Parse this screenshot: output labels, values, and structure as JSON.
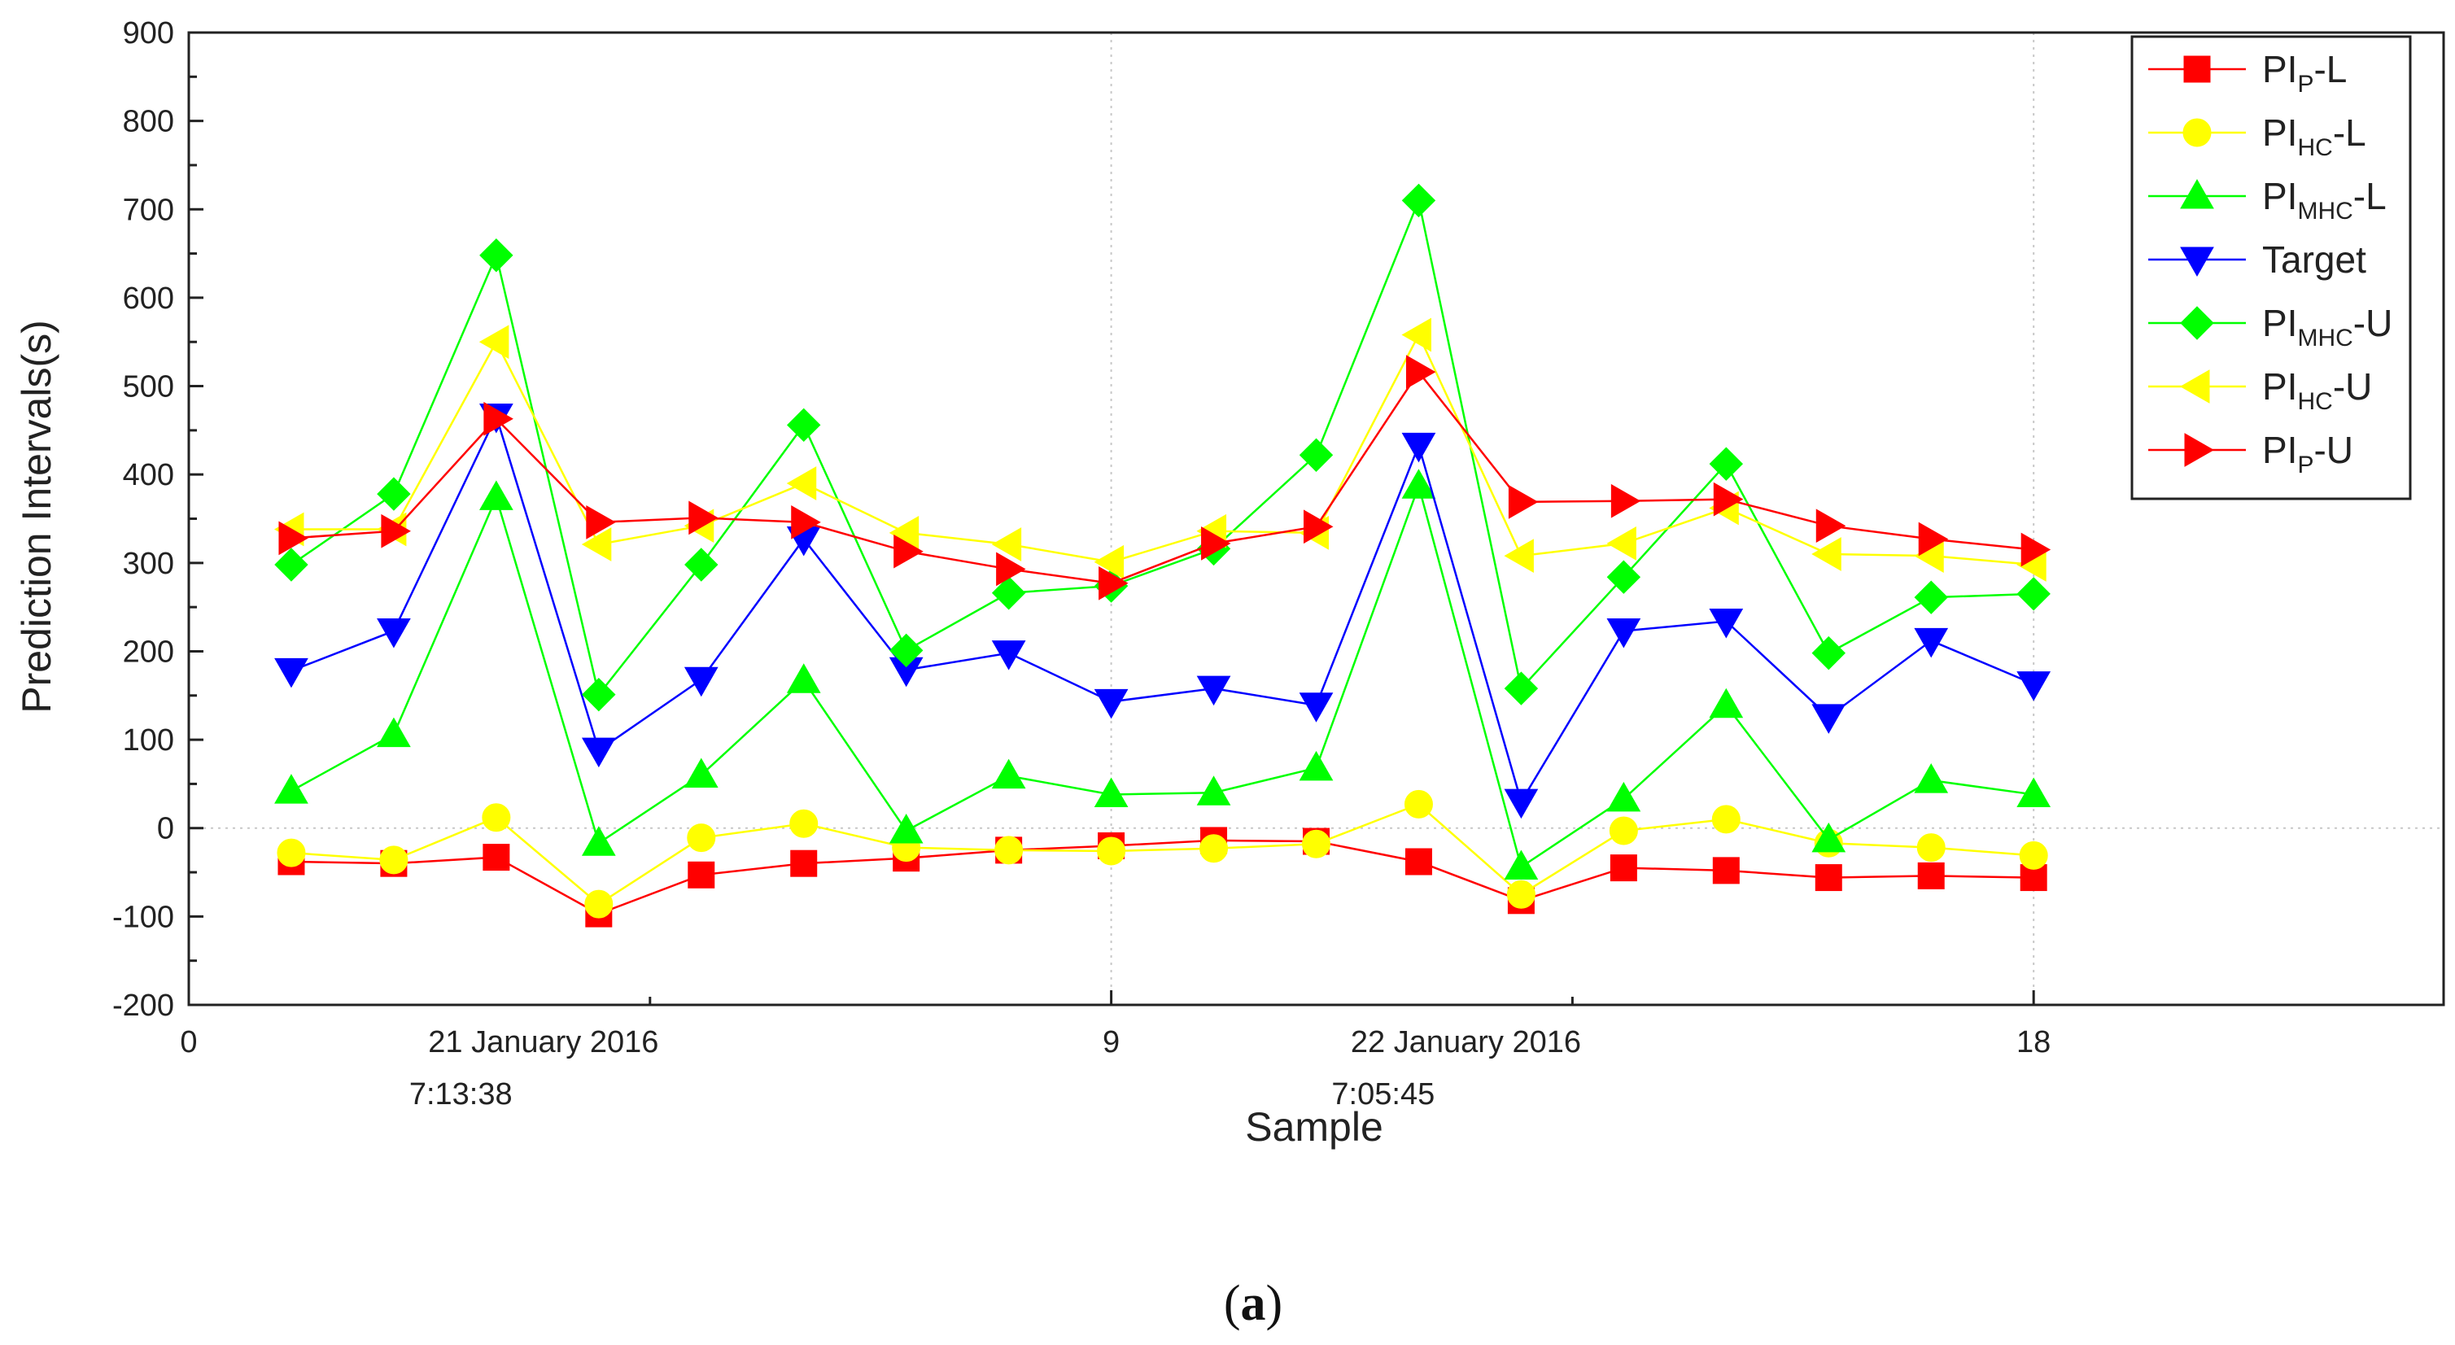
{
  "chart_data": {
    "type": "line",
    "title": "",
    "xlabel": "Sample",
    "ylabel": "Prediction Intervals(s)",
    "xlim": [
      0,
      22
    ],
    "ylim": [
      -200,
      900
    ],
    "x_ticks": [
      "0",
      "9",
      "18"
    ],
    "y_ticks": [
      "-200",
      "-100",
      "0",
      "100",
      "200",
      "300",
      "400",
      "500",
      "600",
      "700",
      "800",
      "900"
    ],
    "annotations": [
      {
        "line1": "21 January 2016",
        "line2": "7:13:38",
        "x": 3.5
      },
      {
        "line1": "22 January 2016",
        "line2": "7:05:45",
        "x": 12.5
      }
    ],
    "grid": true,
    "legend_position": "top-right",
    "x": [
      1,
      2,
      3,
      4,
      5,
      6,
      7,
      8,
      9,
      10,
      11,
      12,
      13,
      14,
      15,
      16,
      17,
      18
    ],
    "series": [
      {
        "name": "PI_P-L",
        "label_main": "PI",
        "label_sub": "P",
        "label_tail": "-L",
        "color": "#ff0000",
        "marker": "square",
        "values": [
          -38,
          -40,
          -33,
          -97,
          -53,
          -40,
          -34,
          -25,
          -20,
          -14,
          -15,
          -38,
          -82,
          -45,
          -48,
          -56,
          -54,
          -56
        ]
      },
      {
        "name": "PI_HC-L",
        "label_main": "PI",
        "label_sub": "HC",
        "label_tail": "-L",
        "color": "#ffff00",
        "marker": "circle",
        "values": [
          -28,
          -36,
          12,
          -86,
          -11,
          5,
          -22,
          -25,
          -26,
          -23,
          -18,
          27,
          -75,
          -3,
          10,
          -17,
          -22,
          -31
        ]
      },
      {
        "name": "PI_MHC-L",
        "label_main": "PI",
        "label_sub": "MHC",
        "label_tail": "-L",
        "color": "#00ff00",
        "marker": "triangle-up",
        "values": [
          42,
          106,
          374,
          -17,
          60,
          167,
          -3,
          59,
          38,
          40,
          68,
          387,
          -44,
          33,
          139,
          -13,
          54,
          38
        ]
      },
      {
        "name": "Target",
        "label_main": "Target",
        "label_sub": "",
        "label_tail": "",
        "color": "#0000ff",
        "marker": "triangle-down",
        "values": [
          178,
          223,
          466,
          88,
          168,
          327,
          179,
          198,
          143,
          158,
          139,
          433,
          30,
          223,
          234,
          126,
          212,
          163
        ]
      },
      {
        "name": "PI_MHC-U",
        "label_main": "PI",
        "label_sub": "MHC",
        "label_tail": "-U",
        "color": "#00ff00",
        "marker": "diamond",
        "values": [
          298,
          378,
          648,
          151,
          298,
          456,
          201,
          266,
          274,
          316,
          422,
          710,
          158,
          284,
          412,
          198,
          261,
          265
        ]
      },
      {
        "name": "PI_HC-U",
        "label_main": "PI",
        "label_sub": "HC",
        "label_tail": "-U",
        "color": "#ffff00",
        "marker": "triangle-left",
        "values": [
          338,
          338,
          550,
          321,
          342,
          390,
          334,
          321,
          301,
          336,
          334,
          558,
          308,
          322,
          362,
          310,
          308,
          298
        ]
      },
      {
        "name": "PI_P-U",
        "label_main": "PI",
        "label_sub": "P",
        "label_tail": "-U",
        "color": "#ff0000",
        "marker": "triangle-right",
        "values": [
          328,
          336,
          463,
          346,
          351,
          346,
          313,
          293,
          277,
          322,
          341,
          516,
          369,
          370,
          372,
          342,
          327,
          315
        ]
      }
    ]
  },
  "caption": {
    "open": "(",
    "letter": "a",
    "close": ")"
  }
}
